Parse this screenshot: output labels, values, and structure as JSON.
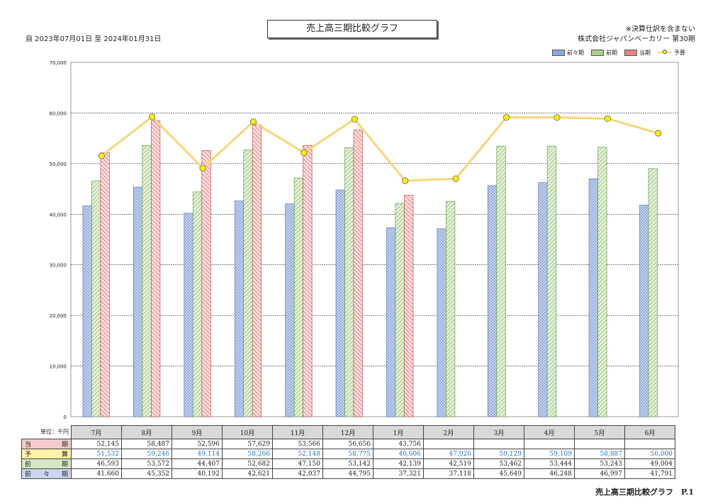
{
  "title": "売上高三期比較グラフ",
  "period": "自 2023年07月01日 至 2024年01月31日",
  "note": "※決算仕訳を含まない",
  "company": "株式会社ジャパンベーカリー 第30期",
  "unit_label": "単位：千円",
  "footer": "売上高三期比較グラフ　P.1",
  "colors": {
    "two_years_ago": "#8fa8dc",
    "previous": "#a9d08e",
    "current": "#f08080",
    "budget": "#f5d67a",
    "budget_marker": "#ffee00"
  },
  "chart_data": {
    "type": "bar",
    "categories": [
      "7月",
      "8月",
      "9月",
      "10月",
      "11月",
      "12月",
      "1月",
      "2月",
      "3月",
      "4月",
      "5月",
      "6月"
    ],
    "ylim": [
      0,
      70000
    ],
    "yticks": [
      "0",
      "10,000",
      "20,000",
      "30,000",
      "40,000",
      "50,000",
      "60,000",
      "70,000"
    ],
    "grid": true,
    "legend_position": "top-right",
    "series": [
      {
        "name": "前々期",
        "type": "bar",
        "values": [
          41660,
          45352,
          40192,
          42621,
          42037,
          44795,
          37321,
          37118,
          45649,
          46248,
          46997,
          41791
        ]
      },
      {
        "name": "前期",
        "type": "bar",
        "values": [
          46593,
          53572,
          44407,
          52682,
          47150,
          53142,
          42139,
          42519,
          53462,
          53444,
          53243,
          49004
        ]
      },
      {
        "name": "当期",
        "type": "bar",
        "values": [
          52145,
          58487,
          52596,
          57629,
          53566,
          56656,
          43756,
          null,
          null,
          null,
          null,
          null
        ]
      },
      {
        "name": "予算",
        "type": "line",
        "values": [
          51532,
          59246,
          49114,
          58266,
          52148,
          58775,
          46606,
          47026,
          59129,
          59109,
          58887,
          56000
        ]
      }
    ]
  },
  "table": {
    "rows": [
      {
        "label": "当　　期",
        "bg": "#f4cccc",
        "key": "current",
        "values": [
          "52,145",
          "58,487",
          "52,596",
          "57,629",
          "53,566",
          "56,656",
          "43,756",
          "",
          "",
          "",
          "",
          ""
        ]
      },
      {
        "label": "予　　算",
        "bg": "#fff2a8",
        "key": "budget",
        "values": [
          "51,532",
          "59,246",
          "49,114",
          "58,266",
          "52,148",
          "58,775",
          "46,606",
          "47,026",
          "59,129",
          "59,109",
          "58,887",
          "56,000"
        ]
      },
      {
        "label": "前　　期",
        "bg": "#d5e8c4",
        "key": "previous",
        "values": [
          "46,593",
          "53,572",
          "44,407",
          "52,682",
          "47,150",
          "53,142",
          "42,139",
          "42,519",
          "53,462",
          "53,444",
          "53,243",
          "49,004"
        ]
      },
      {
        "label": "前 々 期",
        "bg": "#c9d6ee",
        "key": "two_years_ago",
        "values": [
          "41,660",
          "45,352",
          "40,192",
          "42,621",
          "42,037",
          "44,795",
          "37,321",
          "37,118",
          "45,649",
          "46,248",
          "46,997",
          "41,791"
        ]
      }
    ]
  }
}
